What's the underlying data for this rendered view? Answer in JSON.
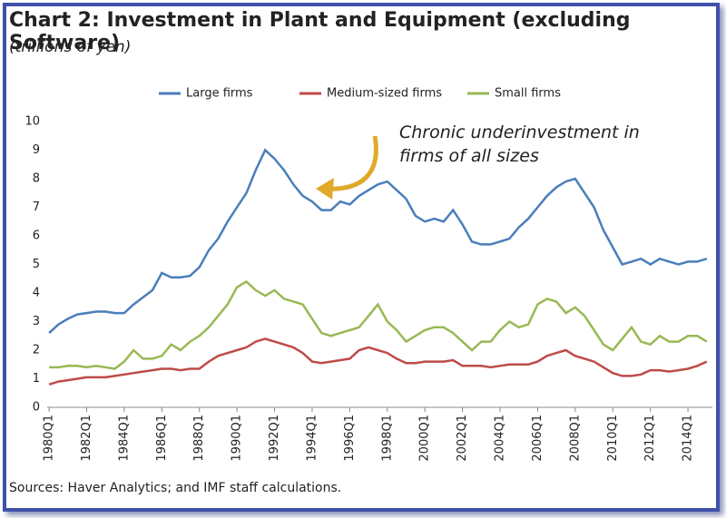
{
  "chart_data": {
    "type": "line",
    "title": "Chart 2: Investment in Plant and Equipment (excluding Software)",
    "subtitle": "(trillions of yen)",
    "source": "Sources: Haver Analytics; and IMF staff calculations.",
    "annotation": "Chronic underinvestment in firms of all sizes",
    "x": [
      1980,
      1980.5,
      1981,
      1981.5,
      1982,
      1982.5,
      1983,
      1983.5,
      1984,
      1984.5,
      1985,
      1985.5,
      1986,
      1986.5,
      1987,
      1987.5,
      1988,
      1988.5,
      1989,
      1989.5,
      1990,
      1990.5,
      1991,
      1991.5,
      1992,
      1992.5,
      1993,
      1993.5,
      1994,
      1994.5,
      1995,
      1995.5,
      1996,
      1996.5,
      1997,
      1997.5,
      1998,
      1998.5,
      1999,
      1999.5,
      2000,
      2000.5,
      2001,
      2001.5,
      2002,
      2002.5,
      2003,
      2003.5,
      2004,
      2004.5,
      2005,
      2005.5,
      2006,
      2006.5,
      2007,
      2007.5,
      2008,
      2008.5,
      2009,
      2009.5,
      2010,
      2010.5,
      2011,
      2011.5,
      2012,
      2012.5,
      2013,
      2013.5,
      2014,
      2014.5,
      2015
    ],
    "series": [
      {
        "name": "Large firms",
        "color": "#4a7ebb",
        "values": [
          2.6,
          2.9,
          3.1,
          3.25,
          3.3,
          3.35,
          3.35,
          3.3,
          3.3,
          3.6,
          3.85,
          4.1,
          4.7,
          4.55,
          4.55,
          4.6,
          4.9,
          5.5,
          5.9,
          6.5,
          7.0,
          7.5,
          8.3,
          9.0,
          8.7,
          8.3,
          7.8,
          7.4,
          7.2,
          6.9,
          6.9,
          7.2,
          7.1,
          7.4,
          7.6,
          7.8,
          7.9,
          7.6,
          7.3,
          6.7,
          6.5,
          6.6,
          6.5,
          6.9,
          6.4,
          5.8,
          5.7,
          5.7,
          5.8,
          5.9,
          6.3,
          6.6,
          7.0,
          7.4,
          7.7,
          7.9,
          8.0,
          7.5,
          7.0,
          6.2,
          5.6,
          5.0,
          5.1,
          5.2,
          5.0,
          5.2,
          5.1,
          5.0,
          5.1,
          5.1,
          5.2
        ]
      },
      {
        "name": "Medium-sized firms",
        "color": "#be4b48",
        "values": [
          0.8,
          0.9,
          0.95,
          1.0,
          1.05,
          1.05,
          1.05,
          1.1,
          1.15,
          1.2,
          1.25,
          1.3,
          1.35,
          1.35,
          1.3,
          1.35,
          1.35,
          1.6,
          1.8,
          1.9,
          2.0,
          2.1,
          2.3,
          2.4,
          2.3,
          2.2,
          2.1,
          1.9,
          1.6,
          1.55,
          1.6,
          1.65,
          1.7,
          2.0,
          2.1,
          2.0,
          1.9,
          1.7,
          1.55,
          1.55,
          1.6,
          1.6,
          1.6,
          1.65,
          1.45,
          1.45,
          1.45,
          1.4,
          1.45,
          1.5,
          1.5,
          1.5,
          1.6,
          1.8,
          1.9,
          2.0,
          1.8,
          1.7,
          1.6,
          1.4,
          1.2,
          1.1,
          1.1,
          1.15,
          1.3,
          1.3,
          1.25,
          1.3,
          1.35,
          1.45,
          1.6
        ]
      },
      {
        "name": "Small firms",
        "color": "#98b954",
        "values": [
          1.4,
          1.4,
          1.45,
          1.45,
          1.4,
          1.45,
          1.4,
          1.35,
          1.6,
          2.0,
          1.7,
          1.7,
          1.8,
          2.2,
          2.0,
          2.3,
          2.5,
          2.8,
          3.2,
          3.6,
          4.2,
          4.4,
          4.1,
          3.9,
          4.1,
          3.8,
          3.7,
          3.6,
          3.1,
          2.6,
          2.5,
          2.6,
          2.7,
          2.8,
          3.2,
          3.6,
          3.0,
          2.7,
          2.3,
          2.5,
          2.7,
          2.8,
          2.8,
          2.6,
          2.3,
          2.0,
          2.3,
          2.3,
          2.7,
          3.0,
          2.8,
          2.9,
          3.6,
          3.8,
          3.7,
          3.3,
          3.5,
          3.2,
          2.7,
          2.2,
          2.0,
          2.4,
          2.8,
          2.3,
          2.2,
          2.5,
          2.3,
          2.3,
          2.5,
          2.5,
          2.3
        ]
      }
    ],
    "xlim": [
      1979.9,
      2015.3
    ],
    "xticks": [
      {
        "value": 1980,
        "label": "1980Q1"
      },
      {
        "value": 1982,
        "label": "1982Q1"
      },
      {
        "value": 1984,
        "label": "1984Q1"
      },
      {
        "value": 1986,
        "label": "1986Q1"
      },
      {
        "value": 1988,
        "label": "1988Q1"
      },
      {
        "value": 1990,
        "label": "1990Q1"
      },
      {
        "value": 1992,
        "label": "1992Q1"
      },
      {
        "value": 1994,
        "label": "1994Q1"
      },
      {
        "value": 1996,
        "label": "1996Q1"
      },
      {
        "value": 1998,
        "label": "1998Q1"
      },
      {
        "value": 2000,
        "label": "2000Q1"
      },
      {
        "value": 2002,
        "label": "2002Q1"
      },
      {
        "value": 2004,
        "label": "2004Q1"
      },
      {
        "value": 2006,
        "label": "2006Q1"
      },
      {
        "value": 2008,
        "label": "2008Q1"
      },
      {
        "value": 2010,
        "label": "2010Q1"
      },
      {
        "value": 2012,
        "label": "2012Q1"
      },
      {
        "value": 2014,
        "label": "2014Q1"
      }
    ],
    "ylim": [
      0,
      10
    ],
    "yticks": [
      0,
      1,
      2,
      3,
      4,
      5,
      6,
      7,
      8,
      9,
      10
    ],
    "legend": "top"
  }
}
